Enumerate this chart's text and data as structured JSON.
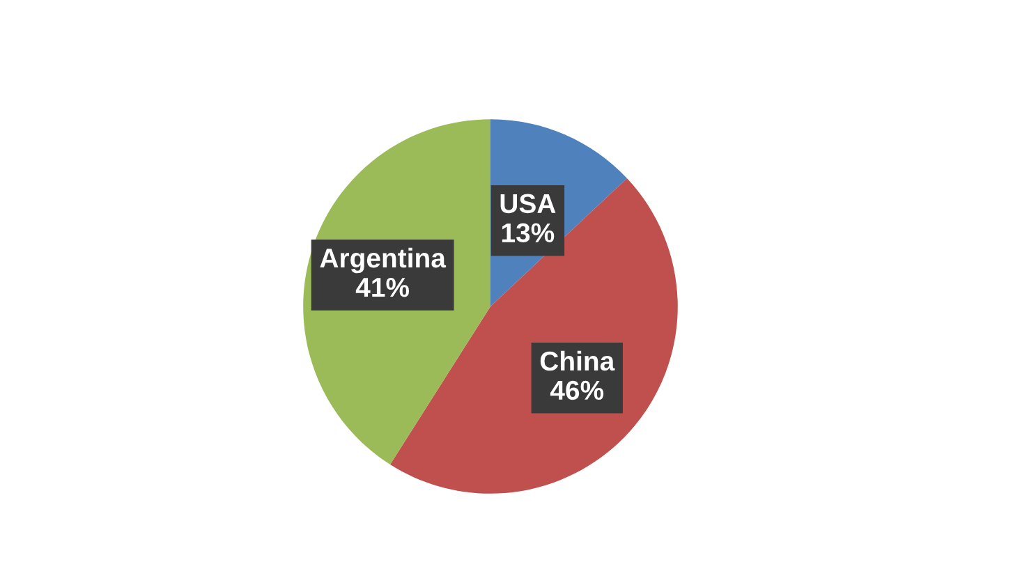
{
  "chart_data": {
    "type": "pie",
    "categories": [
      "USA",
      "China",
      "Argentina"
    ],
    "values": [
      13,
      46,
      41
    ],
    "colors": [
      "#4f81bd",
      "#c0504d",
      "#9bbb59"
    ],
    "value_labels": [
      "13%",
      "46%",
      "41%"
    ],
    "legend": false
  }
}
